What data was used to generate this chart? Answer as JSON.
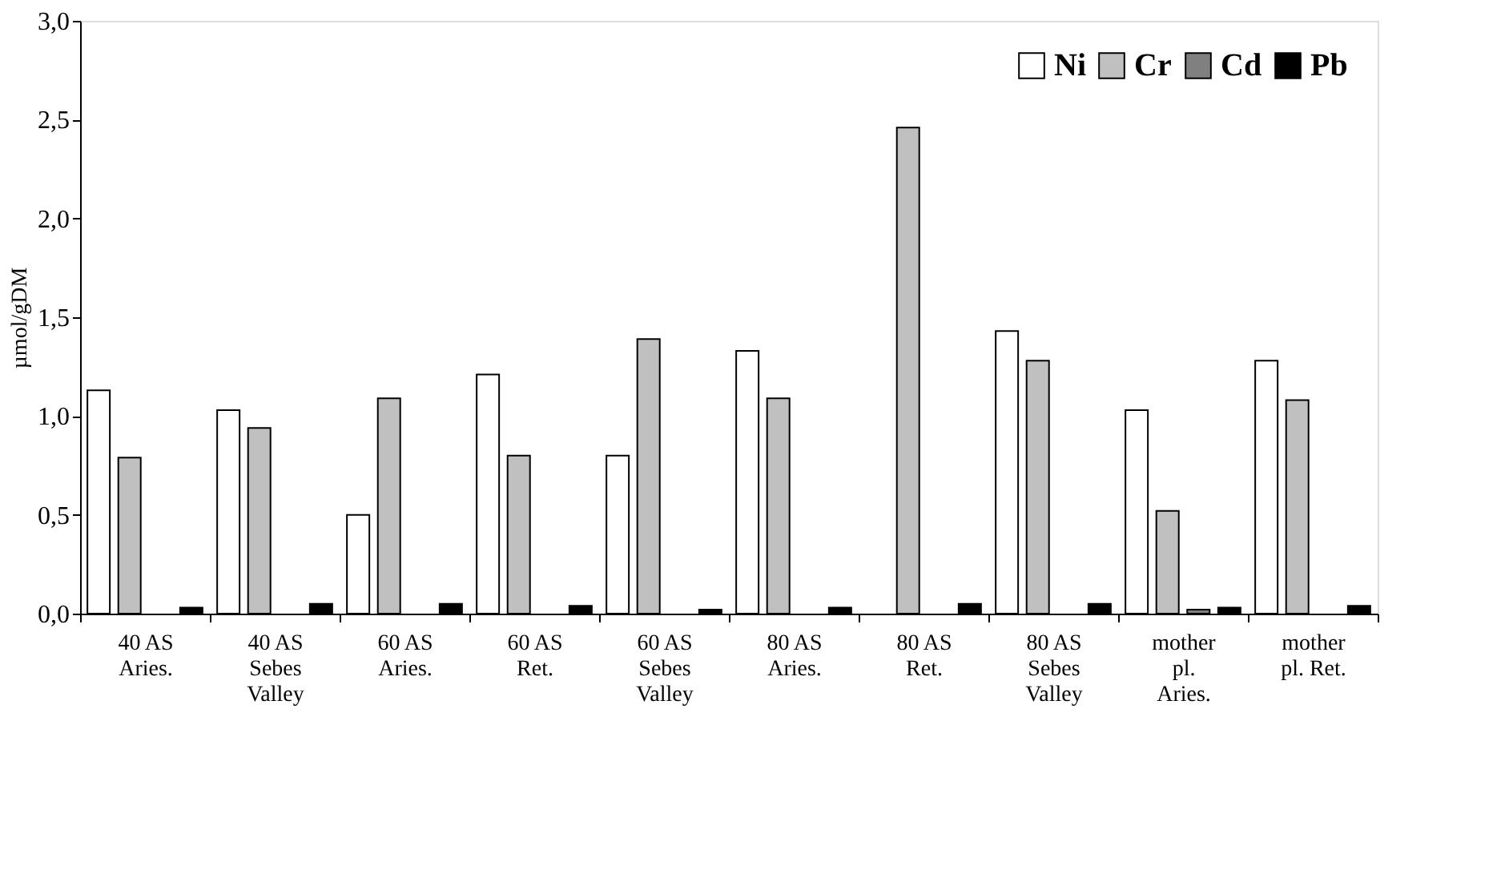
{
  "chart_data": {
    "type": "bar",
    "ylabel": "µmol/gDM",
    "categories": [
      "40 AS\nAries.",
      "40 AS\nSebes\nValley",
      "60 AS\nAries.",
      "60 AS\nRet.",
      "60 AS\nSebes\nValley",
      "80 AS\nAries.",
      "80 AS\nRet.",
      "80 AS\nSebes\nValley",
      "mother\npl.\nAries.",
      "mother\npl. Ret."
    ],
    "series": [
      {
        "name": "Ni",
        "color": "#ffffff",
        "values": [
          1.13,
          1.03,
          0.5,
          1.21,
          0.8,
          1.33,
          null,
          1.43,
          1.03,
          1.28
        ]
      },
      {
        "name": "Cr",
        "color": "#c0c0c0",
        "values": [
          0.79,
          0.94,
          1.09,
          0.8,
          1.39,
          1.09,
          2.46,
          1.28,
          0.52,
          1.08
        ]
      },
      {
        "name": "Cd",
        "color": "#808080",
        "values": [
          null,
          null,
          null,
          null,
          null,
          null,
          null,
          null,
          0.02,
          null
        ]
      },
      {
        "name": "Pb",
        "color": "#000000",
        "values": [
          0.03,
          0.05,
          0.05,
          0.04,
          0.02,
          0.03,
          0.05,
          0.05,
          0.03,
          0.04
        ]
      }
    ],
    "ylim": [
      0,
      3
    ],
    "yticks": [
      {
        "value": 0,
        "label": "0,0"
      },
      {
        "value": 0.5,
        "label": "0,5"
      },
      {
        "value": 1,
        "label": "1,0"
      },
      {
        "value": 1.5,
        "label": "1,5"
      },
      {
        "value": 2,
        "label": "2,0"
      },
      {
        "value": 2.5,
        "label": "2,5"
      },
      {
        "value": 3,
        "label": "3,0"
      }
    ],
    "grid": false,
    "legend": "top right"
  }
}
